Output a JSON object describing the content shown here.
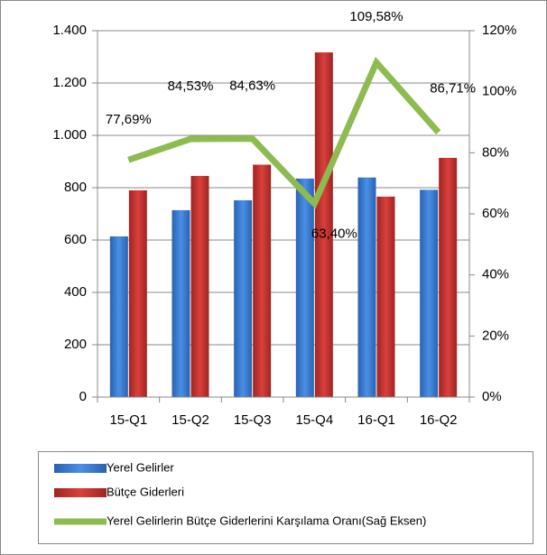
{
  "chart_data": {
    "type": "bar",
    "categories": [
      "15-Q1",
      "15-Q2",
      "15-Q3",
      "15-Q4",
      "16-Q1",
      "16-Q2"
    ],
    "series": [
      {
        "name": "Yerel Gelirler",
        "color": "#3b7dd8",
        "values": [
          614,
          714,
          752,
          835,
          839,
          792
        ]
      },
      {
        "name": "Bütçe Giderleri",
        "color": "#c9302c",
        "values": [
          790,
          845,
          888,
          1317,
          766,
          914
        ]
      },
      {
        "name": "Yerel Gelirlerin Bütçe Giderlerini Karşılama Oranı(Sağ Eksen)",
        "color": "#8dbb4f",
        "type": "line",
        "axis": "y2",
        "values": [
          77.69,
          84.53,
          84.63,
          63.4,
          109.58,
          86.71
        ],
        "value_labels": [
          "77,69%",
          "84,53%",
          "84,63%",
          "63,40%",
          "109,58%",
          "86,71%"
        ]
      }
    ],
    "ylim": [
      0,
      1400
    ],
    "yticks": [
      0,
      200,
      400,
      600,
      800,
      {
        "value": 1000,
        "label": "1.000"
      },
      {
        "value": 1200,
        "label": "1.200"
      },
      {
        "value": 1400,
        "label": "1.400"
      }
    ],
    "y2lim": [
      0,
      120
    ],
    "y2ticks": [
      {
        "value": 0,
        "label": "0%"
      },
      {
        "value": 20,
        "label": "20%"
      },
      {
        "value": 40,
        "label": "40%"
      },
      {
        "value": 60,
        "label": "60%"
      },
      {
        "value": 80,
        "label": "80%"
      },
      {
        "value": 100,
        "label": "100%"
      },
      {
        "value": 120,
        "label": "120%"
      }
    ],
    "grid": true,
    "legend": "bottom"
  }
}
